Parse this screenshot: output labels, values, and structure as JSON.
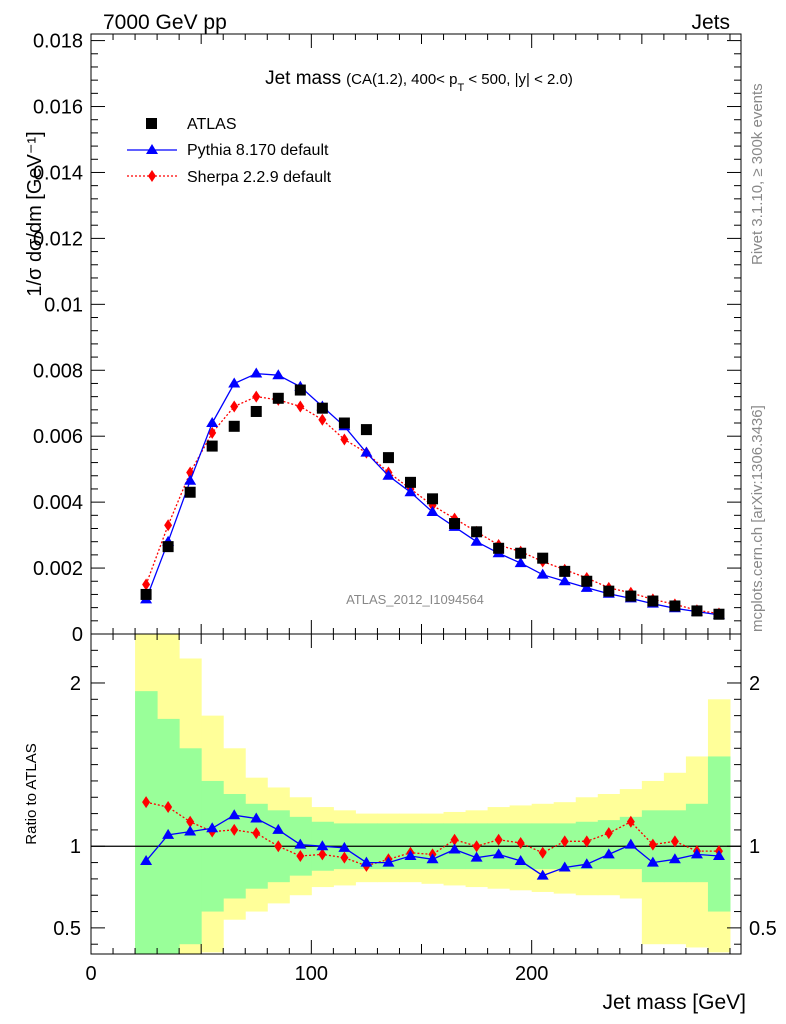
{
  "header": {
    "left": "7000 GeV pp",
    "right": "Jets"
  },
  "side_labels": {
    "rivet": "Rivet 3.1.10, ≥ 300k events",
    "mcplots": "mcplots.cern.ch [arXiv:1306.3436]"
  },
  "colors": {
    "atlas": "#000000",
    "pythia": "#0000ff",
    "sherpa": "#ff0000",
    "band_inner": "#99ff99",
    "band_outer": "#ffff99"
  },
  "chart_data": [
    {
      "type": "scatter",
      "title_main": "Jet mass",
      "title_sub_pre": "(CA(1.2), 400< p",
      "title_sub_subscript": "T",
      "title_sub_post": " < 500, |y| < 2.0)",
      "ylabel": "1/σ dσ/dm [GeV⁻¹]",
      "watermark": "ATLAS_2012_I1094564",
      "xlim": [
        0,
        295
      ],
      "ylim": [
        0,
        0.0182
      ],
      "yticks": [
        {
          "value": 0,
          "label": "0"
        },
        {
          "value": 0.002,
          "label": "0.002"
        },
        {
          "value": 0.004,
          "label": "0.004"
        },
        {
          "value": 0.006,
          "label": "0.006"
        },
        {
          "value": 0.008,
          "label": "0.008"
        },
        {
          "value": 0.01,
          "label": "0.01"
        },
        {
          "value": 0.012,
          "label": "0.012"
        },
        {
          "value": 0.014,
          "label": "0.014"
        },
        {
          "value": 0.016,
          "label": "0.016"
        },
        {
          "value": 0.018,
          "label": "0.018"
        }
      ],
      "legend_position": "top-left",
      "x": [
        25,
        35,
        45,
        55,
        65,
        75,
        85,
        95,
        105,
        115,
        125,
        135,
        145,
        155,
        165,
        175,
        185,
        195,
        205,
        215,
        225,
        235,
        245,
        255,
        265,
        275,
        285
      ],
      "series": [
        {
          "name": "ATLAS",
          "marker": "square",
          "values": [
            0.0012,
            0.00265,
            0.0043,
            0.0057,
            0.0063,
            0.00675,
            0.00715,
            0.0074,
            0.00685,
            0.0064,
            0.0062,
            0.00535,
            0.0046,
            0.0041,
            0.00335,
            0.0031,
            0.0026,
            0.00245,
            0.0023,
            0.0019,
            0.0016,
            0.0013,
            0.00115,
            0.001,
            0.00085,
            0.0007,
            0.0006
          ]
        },
        {
          "name": "Pythia 8.170 default",
          "marker": "triangle",
          "line": "solid",
          "values": [
            0.00105,
            0.0028,
            0.00465,
            0.0064,
            0.0076,
            0.0079,
            0.00785,
            0.0075,
            0.0069,
            0.0063,
            0.0055,
            0.0048,
            0.0043,
            0.0037,
            0.00325,
            0.0028,
            0.00245,
            0.00215,
            0.0018,
            0.0016,
            0.0014,
            0.00122,
            0.00108,
            0.00092,
            0.00078,
            0.00068,
            0.00058
          ]
        },
        {
          "name": "Sherpa 2.2.9 default",
          "marker": "diamond",
          "line": "dotted",
          "values": [
            0.0015,
            0.0033,
            0.0049,
            0.0061,
            0.0069,
            0.0072,
            0.0071,
            0.0069,
            0.0065,
            0.0059,
            0.0055,
            0.0049,
            0.0044,
            0.0039,
            0.0035,
            0.0031,
            0.0027,
            0.0025,
            0.0022,
            0.00195,
            0.0017,
            0.0014,
            0.00125,
            0.00105,
            0.0009,
            0.00072,
            0.00062
          ]
        }
      ]
    },
    {
      "type": "scatter",
      "ylabel": "Ratio to ATLAS",
      "xlabel": "Jet mass [GeV]",
      "xlim": [
        0,
        295
      ],
      "ylim": [
        0.34,
        2.3
      ],
      "xticks": [
        {
          "value": 0,
          "label": "0"
        },
        {
          "value": 100,
          "label": "100"
        },
        {
          "value": 200,
          "label": "200"
        }
      ],
      "yticks": [
        {
          "value": 0.5,
          "label": "0.5"
        },
        {
          "value": 1,
          "label": "1"
        },
        {
          "value": 2,
          "label": "2"
        }
      ],
      "reference_line": 1,
      "bin_edges": [
        20,
        30,
        40,
        50,
        60,
        70,
        80,
        90,
        100,
        110,
        120,
        130,
        140,
        150,
        160,
        170,
        180,
        190,
        200,
        210,
        220,
        230,
        240,
        250,
        260,
        270,
        280,
        290
      ],
      "band_inner": {
        "low": [
          0.2,
          0.25,
          0.4,
          0.6,
          0.68,
          0.74,
          0.78,
          0.82,
          0.85,
          0.86,
          0.86,
          0.86,
          0.86,
          0.86,
          0.86,
          0.86,
          0.86,
          0.86,
          0.86,
          0.86,
          0.86,
          0.86,
          0.86,
          0.78,
          0.78,
          0.78,
          0.6
        ],
        "high": [
          1.95,
          1.78,
          1.6,
          1.4,
          1.32,
          1.26,
          1.22,
          1.18,
          1.15,
          1.14,
          1.14,
          1.14,
          1.14,
          1.14,
          1.14,
          1.14,
          1.14,
          1.14,
          1.14,
          1.14,
          1.15,
          1.16,
          1.18,
          1.22,
          1.22,
          1.26,
          1.55
        ]
      },
      "band_outer": {
        "low": [
          0.2,
          0.2,
          0.2,
          0.35,
          0.55,
          0.6,
          0.65,
          0.7,
          0.75,
          0.76,
          0.78,
          0.78,
          0.78,
          0.77,
          0.76,
          0.75,
          0.74,
          0.73,
          0.72,
          0.71,
          0.7,
          0.7,
          0.68,
          0.4,
          0.4,
          0.38,
          0.35
        ],
        "high": [
          2.3,
          2.3,
          2.15,
          1.8,
          1.6,
          1.42,
          1.36,
          1.3,
          1.24,
          1.22,
          1.2,
          1.2,
          1.2,
          1.2,
          1.21,
          1.22,
          1.24,
          1.25,
          1.26,
          1.27,
          1.3,
          1.32,
          1.35,
          1.4,
          1.45,
          1.55,
          1.9
        ]
      },
      "series": [
        {
          "name": "Pythia 8.170 default",
          "marker": "triangle",
          "line": "solid",
          "values": [
            0.91,
            1.07,
            1.09,
            1.11,
            1.19,
            1.17,
            1.1,
            1.01,
            1.0,
            0.99,
            0.9,
            0.9,
            0.94,
            0.92,
            0.98,
            0.93,
            0.95,
            0.91,
            0.82,
            0.87,
            0.89,
            0.95,
            1.01,
            0.9,
            0.92,
            0.95,
            0.94
          ]
        },
        {
          "name": "Sherpa 2.2.9 default",
          "marker": "diamond",
          "line": "dotted",
          "values": [
            1.27,
            1.24,
            1.15,
            1.09,
            1.1,
            1.08,
            1.0,
            0.94,
            0.95,
            0.93,
            0.88,
            0.92,
            0.96,
            0.95,
            1.04,
            1.0,
            1.04,
            1.02,
            0.96,
            1.03,
            1.03,
            1.08,
            1.15,
            1.01,
            1.03,
            0.97,
            0.97
          ]
        }
      ]
    }
  ]
}
